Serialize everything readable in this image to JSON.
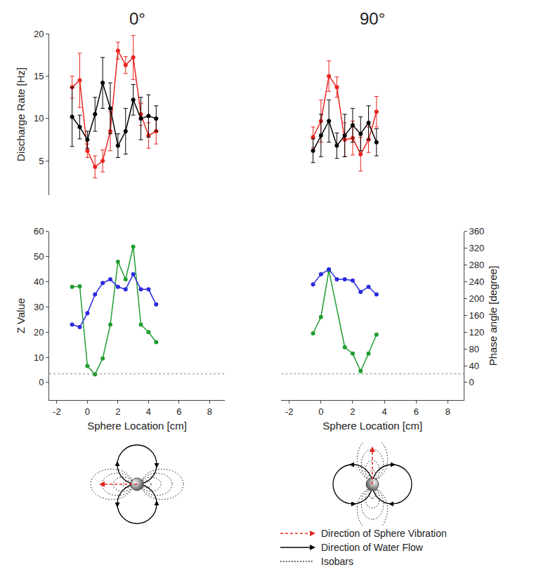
{
  "chart_data": [
    {
      "type": "line",
      "title": "0°",
      "y_label": "Discharge Rate [Hz]",
      "xlim": [
        -2.5,
        9
      ],
      "ylim": [
        1,
        20
      ],
      "yticks": [
        5,
        10,
        15,
        20
      ],
      "series": [
        {
          "color": "#e8251f",
          "marker": "circle",
          "x": [
            -1,
            -0.5,
            0,
            0.5,
            1,
            1.5,
            2,
            2.5,
            3,
            3.5,
            4,
            4.5
          ],
          "values": [
            13.7,
            14.5,
            6.2,
            4.3,
            5.0,
            8.5,
            18.0,
            16.3,
            17.2,
            10.5,
            8.0,
            8.5
          ],
          "error": [
            1.3,
            3.2,
            0.8,
            1.3,
            1.3,
            2.3,
            1.0,
            1.0,
            2.6,
            1.3,
            1.5,
            1.5
          ]
        },
        {
          "color": "#000000",
          "marker": "circle",
          "x": [
            -1,
            -0.5,
            0,
            0.5,
            1,
            1.5,
            2,
            2.5,
            3,
            3.5,
            4,
            4.5
          ],
          "values": [
            10.2,
            9.0,
            7.5,
            10.5,
            14.2,
            11.2,
            6.8,
            8.5,
            12.2,
            10.0,
            10.3,
            10.0
          ],
          "error": [
            3.5,
            1.4,
            1.0,
            2.0,
            3.0,
            3.0,
            1.4,
            2.7,
            1.8,
            2.5,
            2.5,
            1.5
          ]
        }
      ]
    },
    {
      "type": "line",
      "title": "90°",
      "tick_labels": false,
      "xlim": [
        -2.5,
        9
      ],
      "ylim": [
        1,
        20
      ],
      "series": [
        {
          "color": "#e8251f",
          "marker": "circle",
          "x": [
            -0.5,
            0,
            0.5,
            1,
            1.5,
            2,
            2.5,
            3,
            3.5
          ],
          "values": [
            7.8,
            9.7,
            15.0,
            13.7,
            7.5,
            7.7,
            5.8,
            7.5,
            10.8
          ],
          "error": [
            1.2,
            2.5,
            1.8,
            1.2,
            2.0,
            2.0,
            2.0,
            1.5,
            1.8
          ]
        },
        {
          "color": "#000000",
          "marker": "circle",
          "x": [
            -0.5,
            0,
            0.5,
            1,
            1.5,
            2,
            2.5,
            3,
            3.5
          ],
          "values": [
            6.2,
            8.0,
            9.7,
            6.8,
            8.0,
            9.2,
            8.2,
            9.5,
            7.2
          ],
          "error": [
            1.4,
            2.5,
            2.5,
            1.5,
            2.5,
            2.0,
            2.0,
            2.0,
            1.6
          ]
        }
      ]
    },
    {
      "type": "line",
      "x_label": "Sphere Location [cm]",
      "y_label": "Z Value",
      "xlim": [
        -2.5,
        9
      ],
      "xticks": [
        -2,
        0,
        2,
        4,
        6,
        8
      ],
      "ylim": [
        -7,
        60
      ],
      "yticks": [
        0,
        10,
        20,
        30,
        40,
        50,
        60
      ],
      "y2lim": [
        -42,
        360
      ],
      "threshold": 3.4,
      "series": [
        {
          "color": "#2a2ae0",
          "marker": "circle",
          "axis": "y2",
          "x": [
            -1,
            -0.5,
            0,
            0.5,
            1,
            1.5,
            2,
            2.5,
            3,
            3.5,
            4,
            4.5
          ],
          "values": [
            138,
            132,
            165,
            210,
            237,
            246,
            228,
            222,
            258,
            222,
            222,
            186
          ]
        },
        {
          "color": "#1f9e2f",
          "marker": "circle",
          "x": [
            -1,
            -0.5,
            0,
            0.5,
            1,
            1.5,
            2,
            2.5,
            3,
            3.5,
            4,
            4.5
          ],
          "values": [
            38,
            38.2,
            6.5,
            3.2,
            9.5,
            23,
            48,
            41,
            54,
            23,
            20,
            16
          ]
        }
      ]
    },
    {
      "type": "line",
      "x_label": "Sphere Location [cm]",
      "y2_label": "Phase angle [degree]",
      "xlim": [
        -2.5,
        9
      ],
      "xticks": [
        -2,
        0,
        2,
        4,
        6,
        8
      ],
      "ylim": [
        -7,
        60
      ],
      "y2lim": [
        -42,
        360
      ],
      "y2ticks": [
        0,
        40,
        80,
        120,
        160,
        200,
        240,
        280,
        320,
        360
      ],
      "threshold": 3.4,
      "series": [
        {
          "color": "#2a2ae0",
          "marker": "circle",
          "axis": "y2",
          "x": [
            -0.5,
            0,
            0.5,
            1,
            1.5,
            2,
            2.5,
            3,
            3.5
          ],
          "values": [
            234,
            258,
            270,
            246,
            246,
            243,
            216,
            228,
            210
          ]
        },
        {
          "color": "#1f9e2f",
          "marker": "circle",
          "x": [
            -0.5,
            0,
            0.5,
            1.5,
            2,
            2.5,
            3,
            3.5
          ],
          "values": [
            19.5,
            26,
            44.5,
            14,
            11.5,
            4.5,
            11.5,
            19
          ]
        }
      ]
    }
  ],
  "diagram": {
    "legend": [
      {
        "text": "Direction of Sphere Vibration",
        "line_style": "dashed",
        "color": "#e8251f"
      },
      {
        "text": "Direction of Water Flow",
        "line_style": "solid",
        "color": "#000000"
      },
      {
        "text": "Isobars",
        "line_style": "dotted",
        "color": "#000000"
      }
    ]
  }
}
